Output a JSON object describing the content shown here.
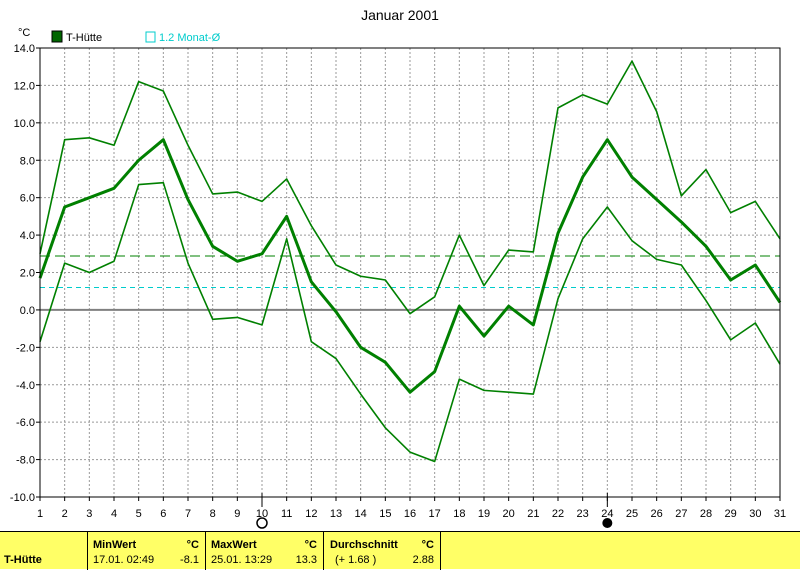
{
  "chart_data": {
    "type": "line",
    "title": "Januar 2001",
    "yunit": "°C",
    "ylim": [
      -10,
      14
    ],
    "yticks": [
      "14.0",
      "12.0",
      "10.0",
      "8.0",
      "6.0",
      "4.0",
      "2.0",
      "0.0",
      "-2.0",
      "-4.0",
      "-6.0",
      "-8.0",
      "-10.0"
    ],
    "ytick_values": [
      14,
      12,
      10,
      8,
      6,
      4,
      2,
      0,
      -2,
      -4,
      -6,
      -8,
      -10
    ],
    "x": [
      1,
      2,
      3,
      4,
      5,
      6,
      7,
      8,
      9,
      10,
      11,
      12,
      13,
      14,
      15,
      16,
      17,
      18,
      19,
      20,
      21,
      22,
      23,
      24,
      25,
      26,
      27,
      28,
      29,
      30,
      31
    ],
    "xticks": [
      "1",
      "2",
      "3",
      "4",
      "5",
      "6",
      "7",
      "8",
      "9",
      "10",
      "11",
      "12",
      "13",
      "14",
      "15",
      "16",
      "17",
      "18",
      "19",
      "20",
      "21",
      "22",
      "23",
      "24",
      "25",
      "26",
      "27",
      "28",
      "29",
      "30",
      "31"
    ],
    "grid": true,
    "legend": [
      {
        "label": "T-Hütte",
        "color": "#006600"
      },
      {
        "label": "1.2 Monat-Ø",
        "color": "#00cccc"
      }
    ],
    "series": [
      {
        "role": "max",
        "color": "#008000",
        "values": [
          3.0,
          9.1,
          9.2,
          8.8,
          12.2,
          11.7,
          8.8,
          6.2,
          6.3,
          5.8,
          7.0,
          4.5,
          2.4,
          1.8,
          1.6,
          -0.2,
          0.7,
          4.0,
          1.3,
          3.2,
          3.1,
          10.8,
          11.5,
          11.0,
          13.3,
          10.6,
          6.1,
          7.5,
          5.2,
          5.8,
          3.8
        ]
      },
      {
        "role": "mean",
        "color": "#008000",
        "values": [
          1.7,
          5.5,
          6.0,
          6.5,
          8.0,
          9.1,
          5.9,
          3.4,
          2.6,
          3.0,
          5.0,
          1.5,
          -0.1,
          -2.0,
          -2.8,
          -4.4,
          -3.3,
          0.2,
          -1.4,
          0.2,
          -0.8,
          4.1,
          7.1,
          9.1,
          7.1,
          5.9,
          4.7,
          3.4,
          1.6,
          2.4,
          0.4
        ]
      },
      {
        "role": "min",
        "color": "#008000",
        "values": [
          -1.7,
          2.5,
          2.0,
          2.6,
          6.7,
          6.8,
          2.5,
          -0.5,
          -0.4,
          -0.8,
          3.8,
          -1.7,
          -2.6,
          -4.5,
          -6.3,
          -7.6,
          -8.1,
          -3.7,
          -4.3,
          -4.4,
          -4.5,
          0.6,
          3.8,
          5.5,
          3.7,
          2.7,
          2.4,
          0.5,
          -1.6,
          -0.7,
          -2.9
        ]
      }
    ],
    "reference_lines": [
      {
        "value": 2.88,
        "color": "#008000"
      },
      {
        "value": 1.2,
        "color": "#00cccc"
      }
    ],
    "moon_markers": [
      {
        "day": 10,
        "phase": "full"
      },
      {
        "day": 24,
        "phase": "new"
      }
    ]
  },
  "footer": {
    "station": "T-Hütte",
    "min_label": "MinWert",
    "min_unit": "°C",
    "min_when": "17.01.  02:49",
    "min_value": "-8.1",
    "max_label": "MaxWert",
    "max_unit": "°C",
    "max_when": "25.01.  13:29",
    "max_value": "13.3",
    "avg_label": "Durchschnitt",
    "avg_unit": "°C",
    "avg_delta": "(+ 1.68 )",
    "avg_value": "2.88"
  }
}
